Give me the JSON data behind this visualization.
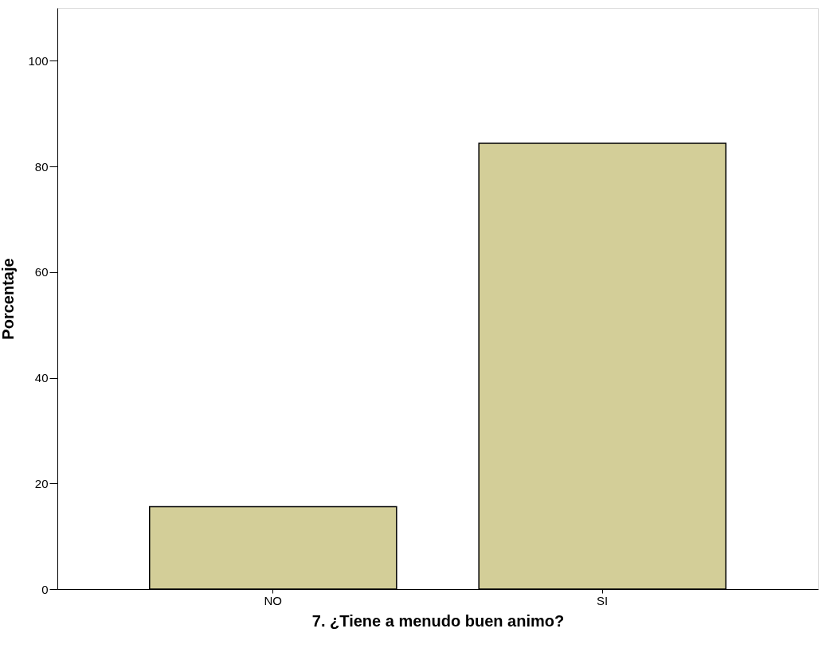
{
  "chart_data": {
    "type": "bar",
    "xlabel": "7. ¿Tiene a menudo buen animo?",
    "ylabel": "Porcentaje",
    "categories": [
      "NO",
      "SI"
    ],
    "values": [
      15.6,
      84.4
    ],
    "color": "#d3ce98",
    "ylim": [
      0,
      110
    ],
    "yticks": [
      0,
      20,
      40,
      60,
      80,
      100
    ],
    "grid": false
  }
}
